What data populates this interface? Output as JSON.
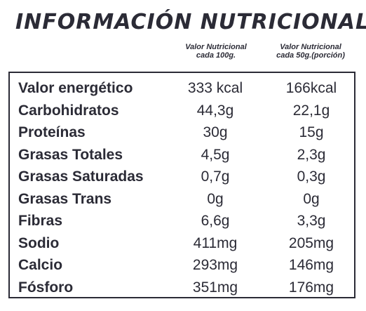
{
  "title": "INFORMACIÓN NUTRICIONAL",
  "columns": {
    "per100": {
      "line1": "Valor Nutricional",
      "line2": "cada 100g."
    },
    "per50": {
      "line1": "Valor Nutricional",
      "line2": "cada 50g.(porción)"
    }
  },
  "rows": [
    {
      "name": "Valor energético",
      "per100": "333 kcal",
      "per50": "166kcal"
    },
    {
      "name": "Carbohidratos",
      "per100": "44,3g",
      "per50": "22,1g"
    },
    {
      "name": "Proteínas",
      "per100": "30g",
      "per50": "15g"
    },
    {
      "name": "Grasas Totales",
      "per100": "4,5g",
      "per50": "2,3g"
    },
    {
      "name": "Grasas Saturadas",
      "per100": "0,7g",
      "per50": "0,3g"
    },
    {
      "name": "Grasas Trans",
      "per100": "0g",
      "per50": "0g"
    },
    {
      "name": "Fibras",
      "per100": "6,6g",
      "per50": "3,3g"
    },
    {
      "name": "Sodio",
      "per100": "411mg",
      "per50": "205mg"
    },
    {
      "name": "Calcio",
      "per100": "293mg",
      "per50": "146mg"
    },
    {
      "name": "Fósforo",
      "per100": "351mg",
      "per50": "176mg"
    }
  ]
}
